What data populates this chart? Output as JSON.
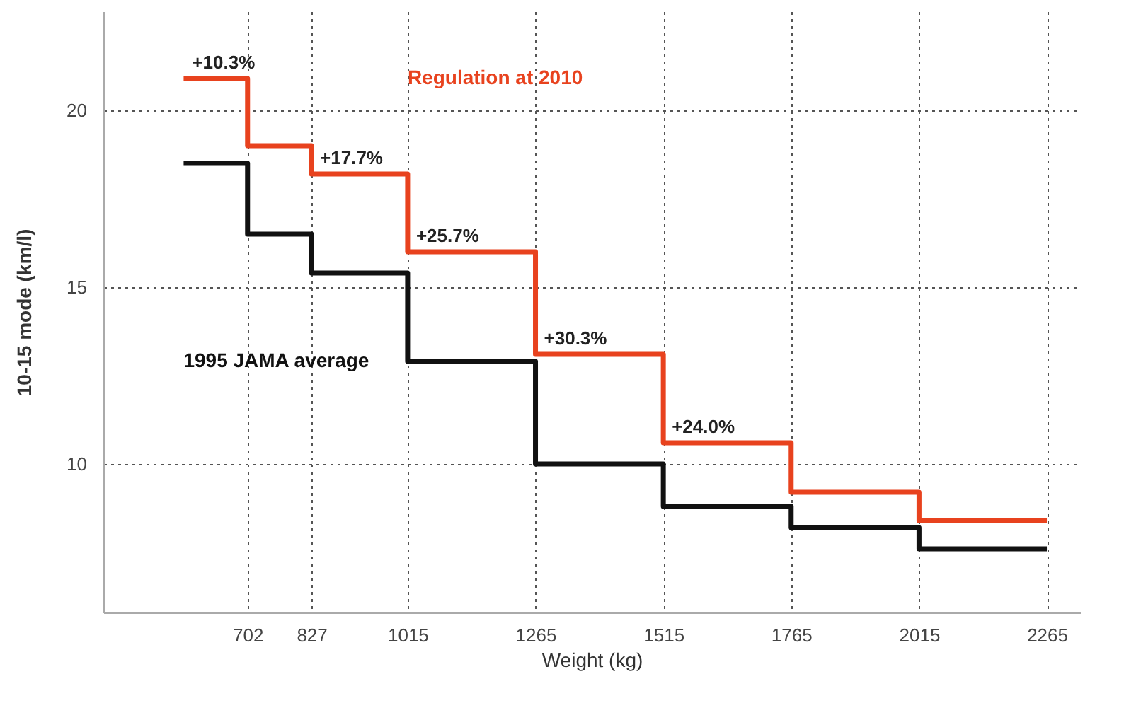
{
  "chart_data": {
    "type": "step",
    "xlabel": "Weight (kg)",
    "ylabel": "10-15 mode (km/l)",
    "x": [
      577,
      702,
      827,
      1015,
      1265,
      1515,
      1765,
      2015,
      2265
    ],
    "series": [
      {
        "name": "Regulation at 2010",
        "color": "#e8421e",
        "values": [
          20.9,
          19.0,
          18.2,
          16.0,
          13.1,
          10.6,
          9.2,
          8.4,
          8.4
        ]
      },
      {
        "name": "1995 JAMA average",
        "color": "#111111",
        "values": [
          18.5,
          16.5,
          15.4,
          12.9,
          10.0,
          8.8,
          8.2,
          7.6,
          7.6
        ]
      }
    ],
    "annotations": [
      {
        "text": "+10.3%",
        "x": 577,
        "y": 20.9
      },
      {
        "text": "+17.7%",
        "x": 827,
        "y": 18.2
      },
      {
        "text": "+25.7%",
        "x": 1015,
        "y": 16.0
      },
      {
        "text": "+30.3%",
        "x": 1265,
        "y": 13.1
      },
      {
        "text": "+24.0%",
        "x": 1515,
        "y": 10.6
      }
    ],
    "xlim": [
      420,
      2330
    ],
    "xticks": [
      702,
      827,
      1015,
      1265,
      1515,
      1765,
      2015,
      2265
    ],
    "ylim": [
      5.8,
      22.8
    ],
    "yticks": [
      10,
      15,
      20
    ],
    "grid": true,
    "line_style": "solid"
  }
}
